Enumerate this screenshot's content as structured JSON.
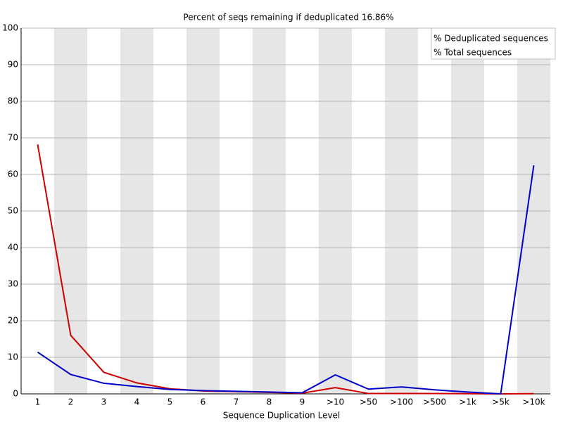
{
  "chart_data": {
    "type": "line",
    "title": "Percent of seqs remaining if deduplicated 16.86%",
    "x_label": "Sequence Duplication Level",
    "categories": [
      "1",
      "2",
      "3",
      "4",
      "5",
      "6",
      "7",
      "8",
      "9",
      ">10",
      ">50",
      ">100",
      ">500",
      ">1k",
      ">5k",
      ">10k"
    ],
    "series": [
      {
        "name": "% Deduplicated sequences",
        "color": "#cc0000",
        "values": [
          68.2,
          16.0,
          5.9,
          3.0,
          1.4,
          0.8,
          0.6,
          0.4,
          0.2,
          1.7,
          0.1,
          0.1,
          0.1,
          0.05,
          0.0,
          0.05
        ]
      },
      {
        "name": "% Total sequences",
        "color": "#0000cc",
        "values": [
          11.4,
          5.3,
          2.9,
          2.0,
          1.2,
          0.9,
          0.7,
          0.5,
          0.3,
          5.2,
          1.3,
          1.9,
          1.1,
          0.5,
          0.0,
          62.5
        ]
      }
    ],
    "ylim": [
      0,
      100
    ],
    "yticks": [
      0,
      10,
      20,
      30,
      40,
      50,
      60,
      70,
      80,
      90,
      100
    ],
    "grid": true,
    "legend": "top-right"
  }
}
